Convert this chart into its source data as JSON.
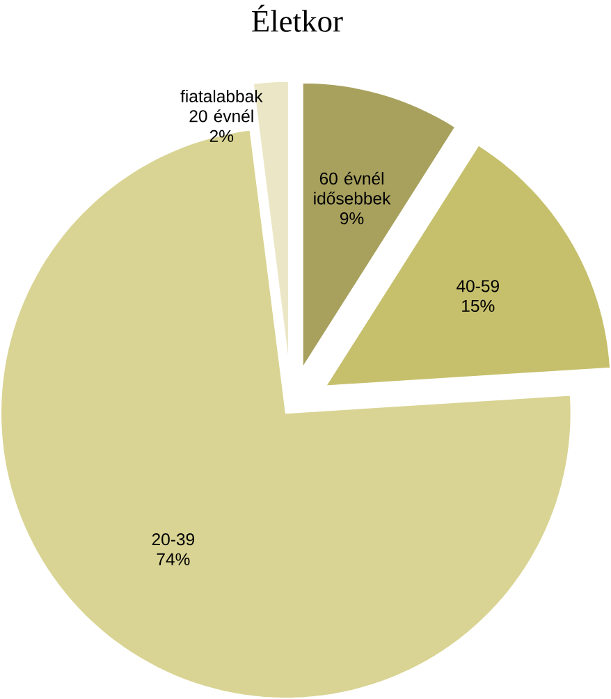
{
  "chart_data": {
    "type": "pie",
    "title": "Életkor",
    "categories": [
      "60 évnél idősebbek",
      "40-59",
      "20-39",
      "fiatalabbak 20 évnél"
    ],
    "values": [
      9,
      15,
      74,
      2
    ],
    "value_labels": [
      "9%",
      "15%",
      "74%",
      "2%"
    ],
    "colors": [
      "#a8a15e",
      "#c6c06c",
      "#d9d493",
      "#ebe7c6"
    ]
  }
}
